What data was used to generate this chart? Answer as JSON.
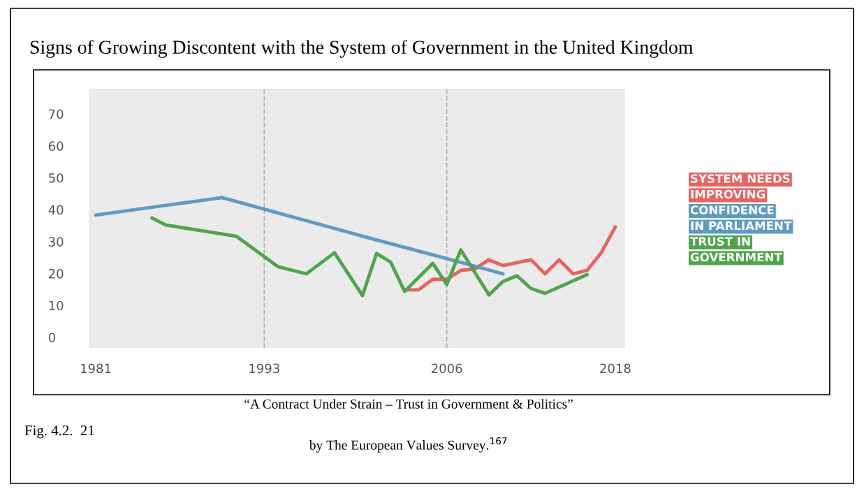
{
  "chart_data": {
    "type": "line",
    "title": "Signs of Growing Discontent with the System of Government in the United Kingdom",
    "xlim": [
      1980.5,
      2018.7
    ],
    "xticks": [
      1981,
      1993,
      2006,
      2018
    ],
    "ylim": [
      -3.3,
      77.9
    ],
    "yticks": [
      0,
      10,
      20,
      30,
      40,
      50,
      60,
      70
    ],
    "grid": false,
    "legend": "right",
    "marker": "none",
    "line_style": "solid",
    "ref_lines": [
      {
        "axis": "x",
        "value": 1993,
        "color": "#b5b5b5",
        "line_style": "dashed"
      },
      {
        "axis": "x",
        "value": 2006,
        "color": "#b5b5b5",
        "line_style": "dashed"
      }
    ],
    "series": [
      {
        "name": "SYSTEM NEEDS\nIMPROVING",
        "color": "#e8625f",
        "x": [
          2003,
          2004,
          2005,
          2006,
          2007,
          2008,
          2009,
          2010,
          2012,
          2013,
          2014,
          2015,
          2016,
          2017,
          2018
        ],
        "values": [
          14.9,
          14.9,
          18.2,
          18.2,
          21,
          21.4,
          24.3,
          22.5,
          24.3,
          19.9,
          24.3,
          19.9,
          21,
          26.5,
          34.6
        ]
      },
      {
        "name": "CONFIDENCE\nIN PARLIAMENT",
        "color": "#5b9bc4",
        "x": [
          1981,
          1990,
          2000,
          2006,
          2010
        ],
        "values": [
          38.3,
          43.8,
          31.7,
          24.7,
          19.9
        ]
      },
      {
        "name": "TRUST IN\nGOVERNMENT",
        "color": "#4ea64a",
        "x": [
          1985,
          1986,
          1991,
          1994,
          1996,
          1998,
          2000,
          2001,
          2002,
          2003,
          2005,
          2006,
          2007,
          2009,
          2010,
          2011,
          2012,
          2013,
          2016
        ],
        "values": [
          37.4,
          35.2,
          31.7,
          22.1,
          19.9,
          26.5,
          13.1,
          26.3,
          23.6,
          14.4,
          23.2,
          16.6,
          27.4,
          13.3,
          17.5,
          19.3,
          15.3,
          13.8,
          19.7
        ]
      }
    ],
    "annotations": [
      "Fig. 4.2.  21",
      "“A Contract Under Strain – Trust in Government & Politics”",
      "by The European Values Survey.$^{167}$"
    ]
  }
}
